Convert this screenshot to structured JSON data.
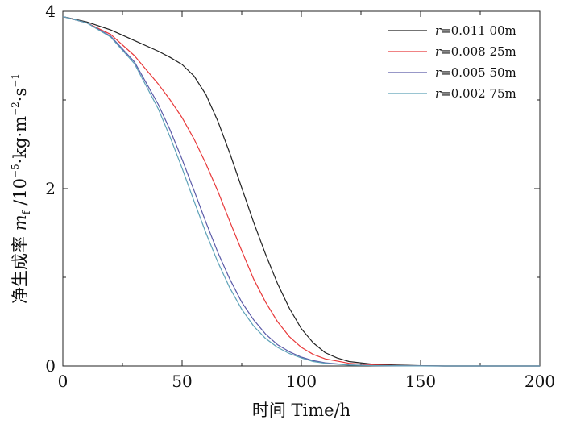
{
  "chart_data": {
    "type": "line",
    "xlabel": "时间  Time/h",
    "ylabel": {
      "prefix": "净生成率 ",
      "symbol": "m",
      "symbol_sub": "f",
      "unit_prefix": " /10",
      "exp1": "−5",
      "unit_mid": "·kg·m",
      "exp2": "−2",
      "unit_end": "·s",
      "exp3": "−1"
    },
    "xlim": [
      0,
      200
    ],
    "ylim": [
      0,
      4
    ],
    "xticks": [
      0,
      50,
      100,
      150,
      200
    ],
    "yticks": [
      0,
      2,
      4
    ],
    "grid": false,
    "legend_position": "top-right",
    "series": [
      {
        "name": "r=0.011 00m",
        "label_var": "r",
        "label_rest": "=0.011 00m",
        "color": "#222222",
        "x": [
          0,
          10,
          20,
          30,
          40,
          45,
          50,
          55,
          60,
          65,
          70,
          75,
          80,
          85,
          90,
          95,
          100,
          105,
          110,
          115,
          120,
          130,
          140,
          150,
          160
        ],
        "y": [
          3.94,
          3.88,
          3.79,
          3.67,
          3.55,
          3.48,
          3.4,
          3.27,
          3.06,
          2.76,
          2.4,
          2.01,
          1.62,
          1.26,
          0.93,
          0.65,
          0.42,
          0.26,
          0.15,
          0.09,
          0.05,
          0.02,
          0.01,
          0.004,
          0.0
        ]
      },
      {
        "name": "r=0.008 25m",
        "label_var": "r",
        "label_rest": "=0.008 25m",
        "color": "#e8393a",
        "x": [
          0,
          10,
          20,
          30,
          40,
          45,
          50,
          55,
          60,
          65,
          70,
          75,
          80,
          85,
          90,
          95,
          100,
          105,
          110,
          120,
          130,
          140,
          150,
          160
        ],
        "y": [
          3.94,
          3.87,
          3.74,
          3.5,
          3.18,
          3.0,
          2.8,
          2.56,
          2.28,
          1.97,
          1.63,
          1.3,
          0.98,
          0.72,
          0.5,
          0.33,
          0.21,
          0.13,
          0.08,
          0.03,
          0.012,
          0.005,
          0.002,
          0.0
        ]
      },
      {
        "name": "r=0.005 50m",
        "label_var": "r",
        "label_rest": "=0.005 50m",
        "color": "#5a5aa8",
        "x": [
          0,
          10,
          20,
          30,
          40,
          45,
          50,
          55,
          60,
          65,
          70,
          75,
          80,
          85,
          90,
          95,
          100,
          105,
          110,
          120,
          130,
          140,
          150,
          160
        ],
        "y": [
          3.94,
          3.87,
          3.72,
          3.43,
          2.95,
          2.66,
          2.33,
          1.98,
          1.62,
          1.28,
          0.98,
          0.72,
          0.52,
          0.36,
          0.24,
          0.16,
          0.1,
          0.06,
          0.035,
          0.012,
          0.004,
          0.002,
          0.001,
          0.0
        ]
      },
      {
        "name": "r=0.002 75m",
        "label_var": "r",
        "label_rest": "=0.002 75m",
        "color": "#5ea2b8",
        "x": [
          0,
          10,
          20,
          30,
          40,
          45,
          50,
          55,
          60,
          65,
          70,
          75,
          80,
          85,
          90,
          95,
          100,
          105,
          110,
          120,
          130,
          140,
          150,
          160
        ],
        "y": [
          3.94,
          3.87,
          3.71,
          3.41,
          2.9,
          2.58,
          2.23,
          1.86,
          1.5,
          1.17,
          0.88,
          0.64,
          0.45,
          0.31,
          0.21,
          0.14,
          0.09,
          0.05,
          0.03,
          0.01,
          0.004,
          0.002,
          0.001,
          0.0
        ]
      }
    ]
  }
}
